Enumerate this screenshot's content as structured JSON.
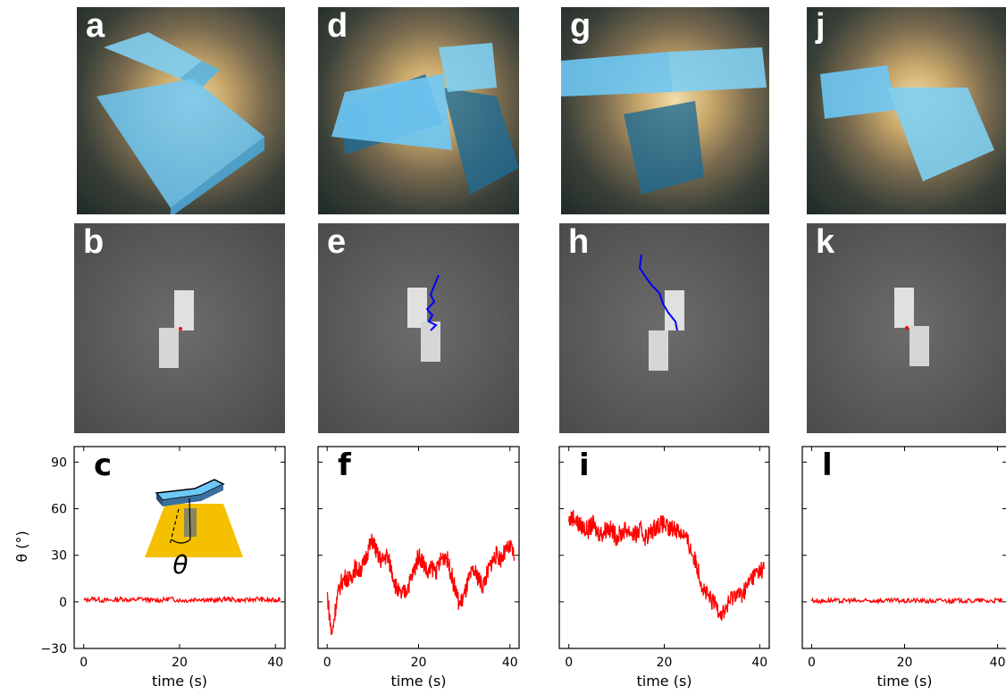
{
  "panels": {
    "render": [
      "a",
      "d",
      "g",
      "j"
    ],
    "micro": [
      "b",
      "e",
      "h",
      "k"
    ],
    "plot": [
      "c",
      "f",
      "i",
      "l"
    ]
  },
  "colors": {
    "trace": "#ff0000",
    "trajectory": "#0000ff",
    "slab": "#6ec8f5",
    "substrate": "#f5c000"
  },
  "inset": {
    "angle_symbol": "θ"
  },
  "axis": {
    "ylabel": "θ (°)",
    "xlabel": "time (s)"
  },
  "chart_data": [
    {
      "panel": "c",
      "type": "line",
      "xlabel": "time (s)",
      "ylabel": "θ (°)",
      "xlim": [
        -2,
        42
      ],
      "ylim": [
        -30,
        100
      ],
      "xticks": [
        "0",
        "20",
        "40"
      ],
      "yticks": [
        "−30",
        "0",
        "30",
        "60",
        "90"
      ],
      "series": [
        {
          "x": [
            0,
            2,
            4,
            6,
            8,
            10,
            12,
            14,
            16,
            18,
            20,
            22,
            24,
            26,
            28,
            30,
            32,
            34,
            36,
            38,
            40,
            41
          ],
          "y": [
            1,
            2,
            1,
            1,
            2,
            1,
            2,
            1,
            1,
            2,
            1,
            1,
            2,
            1,
            1,
            2,
            1,
            1,
            2,
            1,
            1,
            2
          ]
        }
      ]
    },
    {
      "panel": "f",
      "type": "line",
      "xlabel": "time (s)",
      "xlim": [
        -2,
        42
      ],
      "ylim": [
        -30,
        100
      ],
      "xticks": [
        "0",
        "20",
        "40"
      ],
      "series": [
        {
          "x": [
            0,
            1,
            2,
            3,
            4,
            5,
            6,
            7,
            8,
            9,
            10,
            11,
            12,
            13,
            14,
            15,
            16,
            17,
            18,
            19,
            20,
            21,
            22,
            23,
            24,
            25,
            26,
            27,
            28,
            29,
            30,
            31,
            32,
            33,
            34,
            35,
            36,
            37,
            38,
            39,
            40,
            41
          ],
          "y": [
            5,
            -22,
            0,
            12,
            16,
            14,
            22,
            20,
            24,
            34,
            40,
            30,
            26,
            30,
            22,
            10,
            4,
            6,
            12,
            20,
            30,
            26,
            18,
            22,
            20,
            28,
            30,
            20,
            8,
            -2,
            4,
            14,
            20,
            16,
            10,
            18,
            26,
            30,
            28,
            32,
            35,
            30
          ]
        }
      ]
    },
    {
      "panel": "i",
      "type": "line",
      "xlabel": "time (s)",
      "xlim": [
        -2,
        42
      ],
      "ylim": [
        -30,
        100
      ],
      "xticks": [
        "0",
        "20",
        "40"
      ],
      "series": [
        {
          "x": [
            0,
            1,
            2,
            3,
            4,
            5,
            6,
            7,
            8,
            9,
            10,
            11,
            12,
            13,
            14,
            15,
            16,
            17,
            18,
            19,
            20,
            21,
            22,
            23,
            24,
            25,
            26,
            27,
            28,
            29,
            30,
            31,
            32,
            33,
            34,
            35,
            36,
            37,
            38,
            39,
            40,
            41
          ],
          "y": [
            52,
            55,
            50,
            48,
            46,
            50,
            45,
            44,
            48,
            46,
            42,
            44,
            47,
            45,
            43,
            46,
            42,
            44,
            48,
            50,
            50,
            46,
            48,
            46,
            44,
            38,
            30,
            22,
            10,
            4,
            0,
            -2,
            -8,
            -4,
            2,
            6,
            4,
            8,
            14,
            18,
            20,
            22
          ]
        }
      ]
    },
    {
      "panel": "l",
      "type": "line",
      "xlabel": "time (s)",
      "xlim": [
        -2,
        42
      ],
      "ylim": [
        -30,
        100
      ],
      "xticks": [
        "0",
        "20",
        "40"
      ],
      "series": [
        {
          "x": [
            0,
            2,
            4,
            6,
            8,
            10,
            12,
            14,
            16,
            18,
            20,
            22,
            24,
            26,
            28,
            30,
            32,
            34,
            36,
            38,
            40,
            41
          ],
          "y": [
            1,
            0.5,
            1,
            0.5,
            1,
            0.5,
            0.5,
            1,
            0.5,
            1,
            0.5,
            1,
            0.5,
            0.5,
            1,
            0.5,
            1,
            0.5,
            1,
            0.5,
            1,
            0.5
          ]
        }
      ]
    }
  ]
}
